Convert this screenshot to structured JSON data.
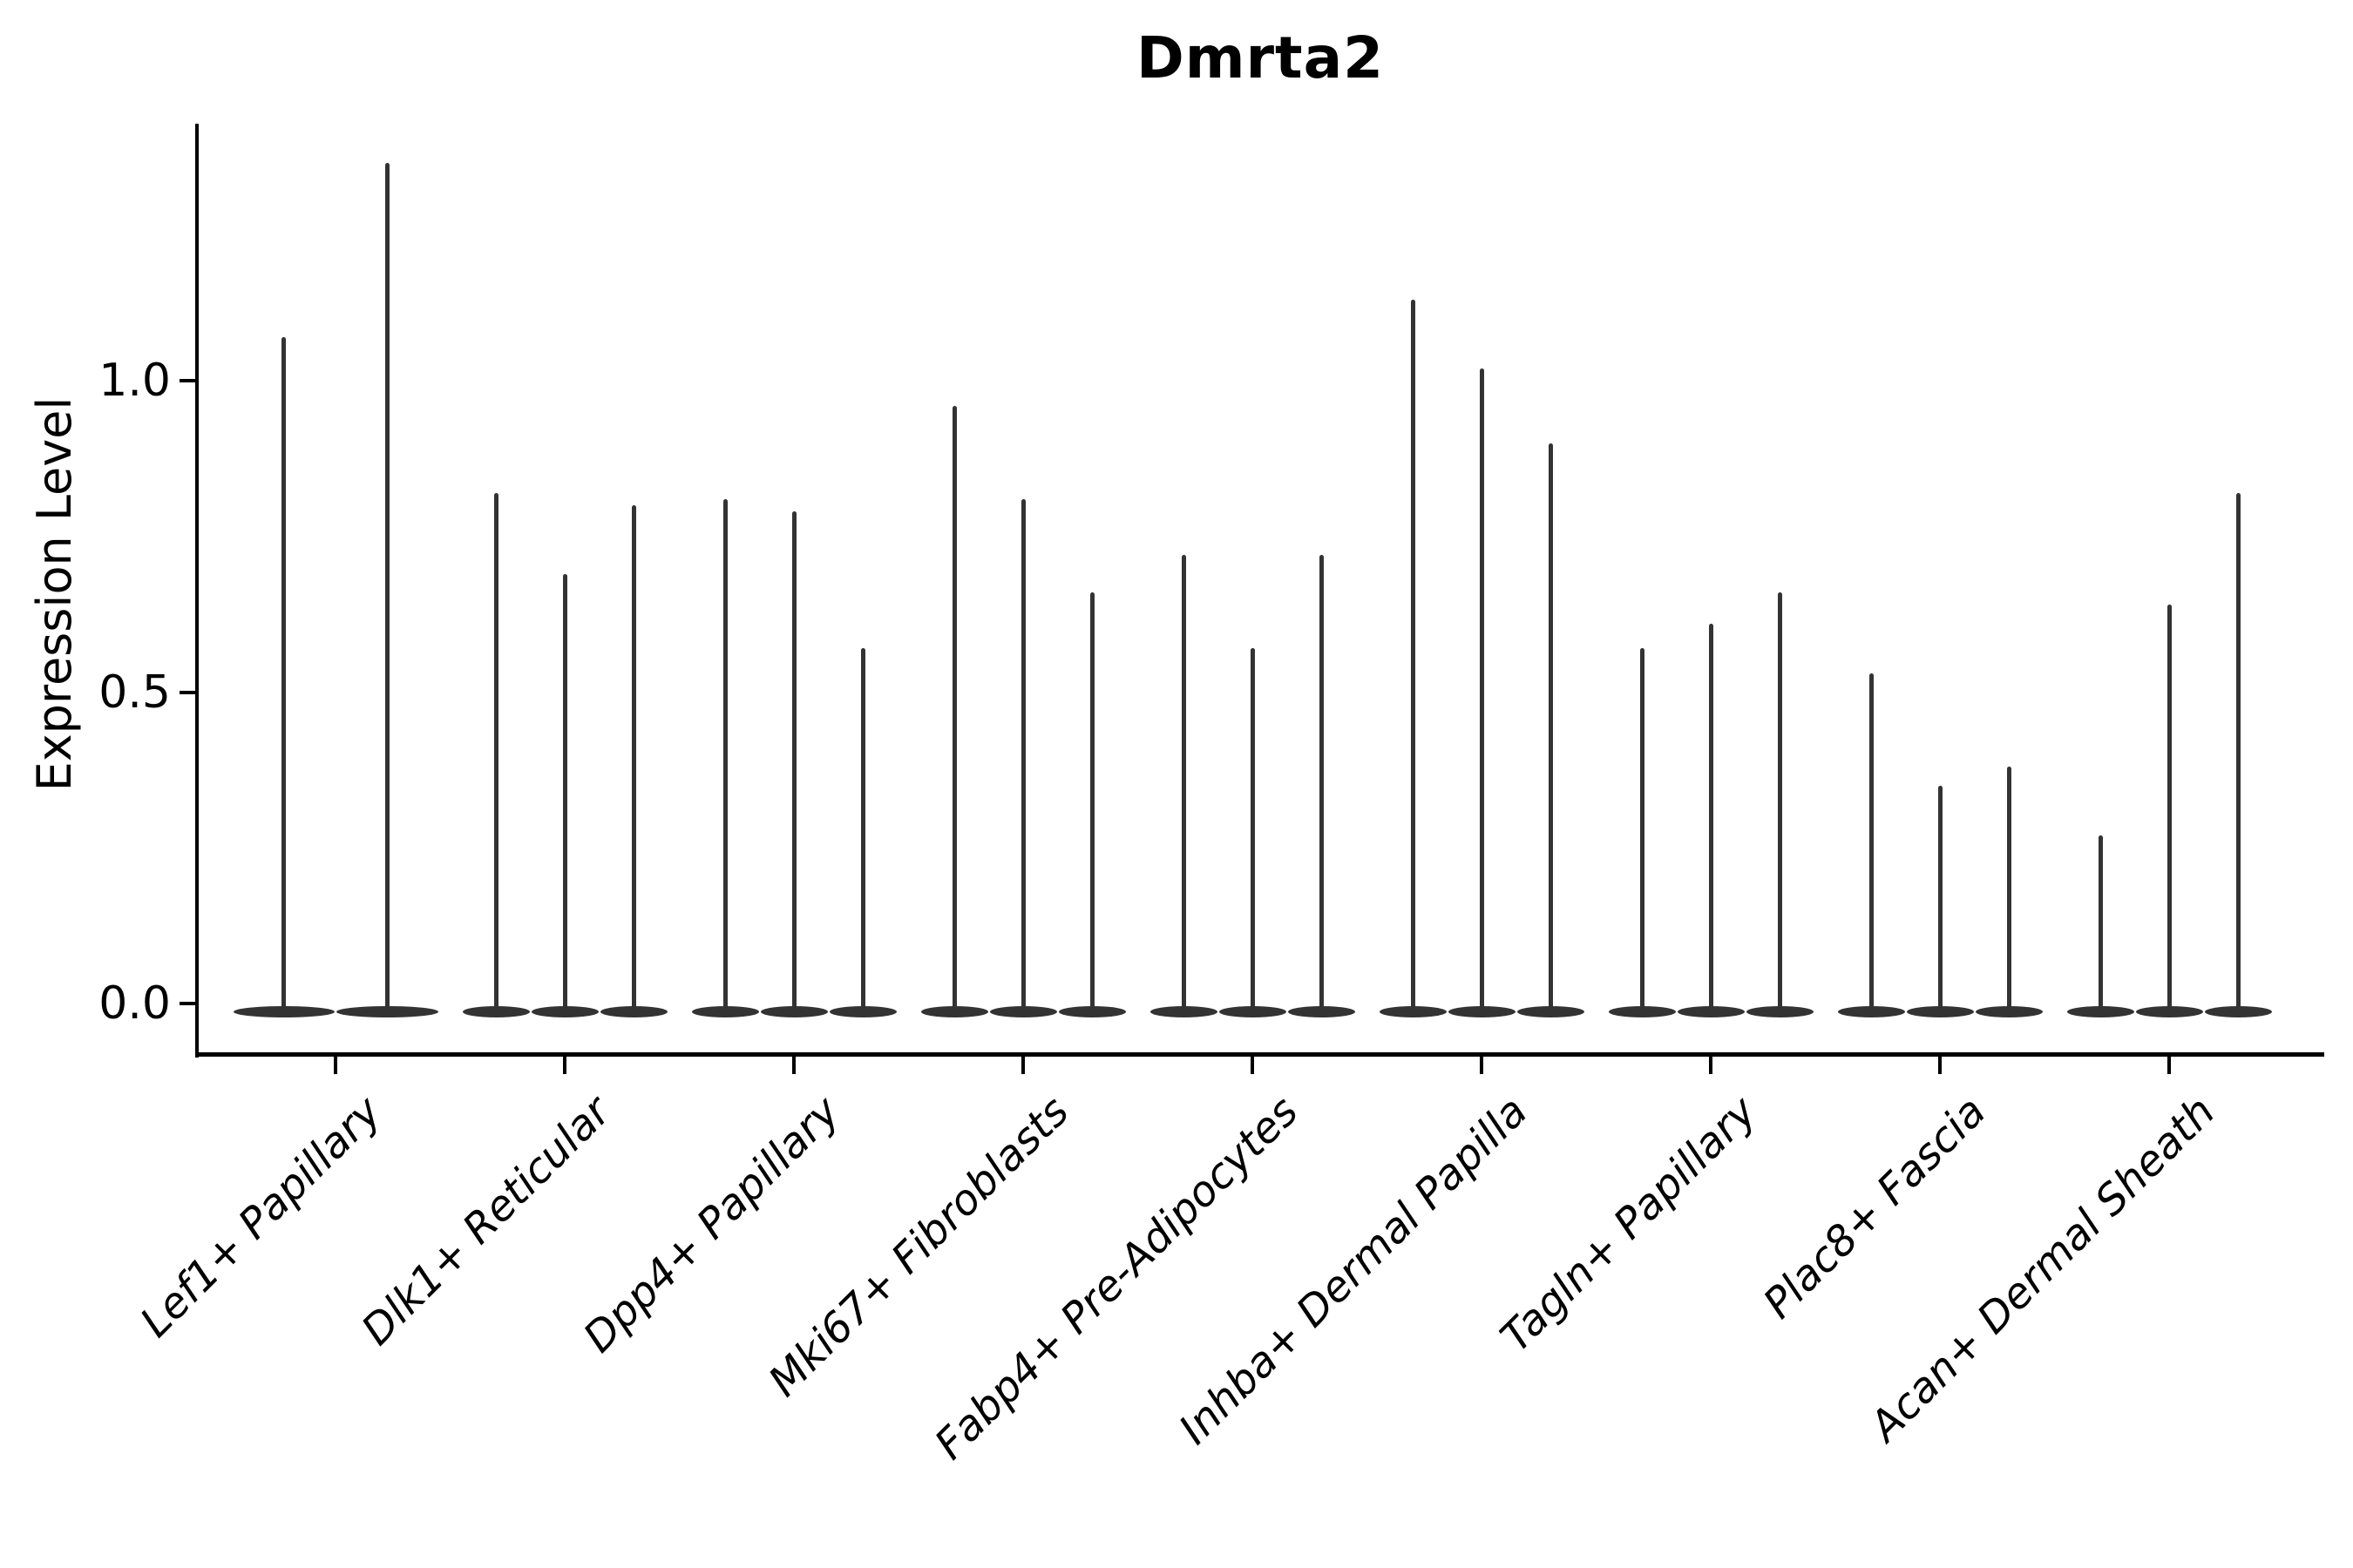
{
  "figure": {
    "title": "Dmrta2",
    "ylabel": "Expression Level",
    "background_color": "#ffffff",
    "axis_color": "#000000",
    "violin_color": "#333333"
  },
  "chart_data": {
    "type": "violin",
    "title": "Dmrta2",
    "xlabel": "",
    "ylabel": "Expression Level",
    "yticks": [
      0.0,
      0.5,
      1.0
    ],
    "ytick_labels": [
      "0.0",
      "0.5",
      "1.0"
    ],
    "ylim": [
      0.0,
      1.41
    ],
    "grid": false,
    "legend": "none",
    "x_label_rotation_deg": 45,
    "x_label_style": "italic",
    "note": "Each category shows collapsed violins: bulk of density is a flat pancake at 0 with a thin tail rising to the max expression value.",
    "categories": [
      "Lef1+ Papillary",
      "Dlk1+ Reticular",
      "Dpp4+ Papillary",
      "Mki67+ Fibroblasts",
      "Fabp4+ Pre-Adipocytes",
      "Inhba+ Dermal Papilla",
      "Tagln+ Papillary",
      "Plac8+ Fascia",
      "Acan+ Dermal Sheath"
    ],
    "series": [
      {
        "category": "Lef1+ Papillary",
        "baseline_value": 0.0,
        "violin_maxima": [
          1.07,
          1.35
        ]
      },
      {
        "category": "Dlk1+ Reticular",
        "baseline_value": 0.0,
        "violin_maxima": [
          0.82,
          0.69,
          0.8
        ]
      },
      {
        "category": "Dpp4+ Papillary",
        "baseline_value": 0.0,
        "violin_maxima": [
          0.81,
          0.79,
          0.57
        ]
      },
      {
        "category": "Mki67+ Fibroblasts",
        "baseline_value": 0.0,
        "violin_maxima": [
          0.96,
          0.81,
          0.66
        ]
      },
      {
        "category": "Fabp4+ Pre-Adipocytes",
        "baseline_value": 0.0,
        "violin_maxima": [
          0.72,
          0.57,
          0.72
        ]
      },
      {
        "category": "Inhba+ Dermal Papilla",
        "baseline_value": 0.0,
        "violin_maxima": [
          1.13,
          1.02,
          0.9
        ]
      },
      {
        "category": "Tagln+ Papillary",
        "baseline_value": 0.0,
        "violin_maxima": [
          0.57,
          0.61,
          0.66
        ]
      },
      {
        "category": "Plac8+ Fascia",
        "baseline_value": 0.0,
        "violin_maxima": [
          0.53,
          0.35,
          0.38
        ]
      },
      {
        "category": "Acan+ Dermal Sheath",
        "baseline_value": 0.0,
        "violin_maxima": [
          0.27,
          0.64,
          0.82
        ]
      }
    ]
  }
}
